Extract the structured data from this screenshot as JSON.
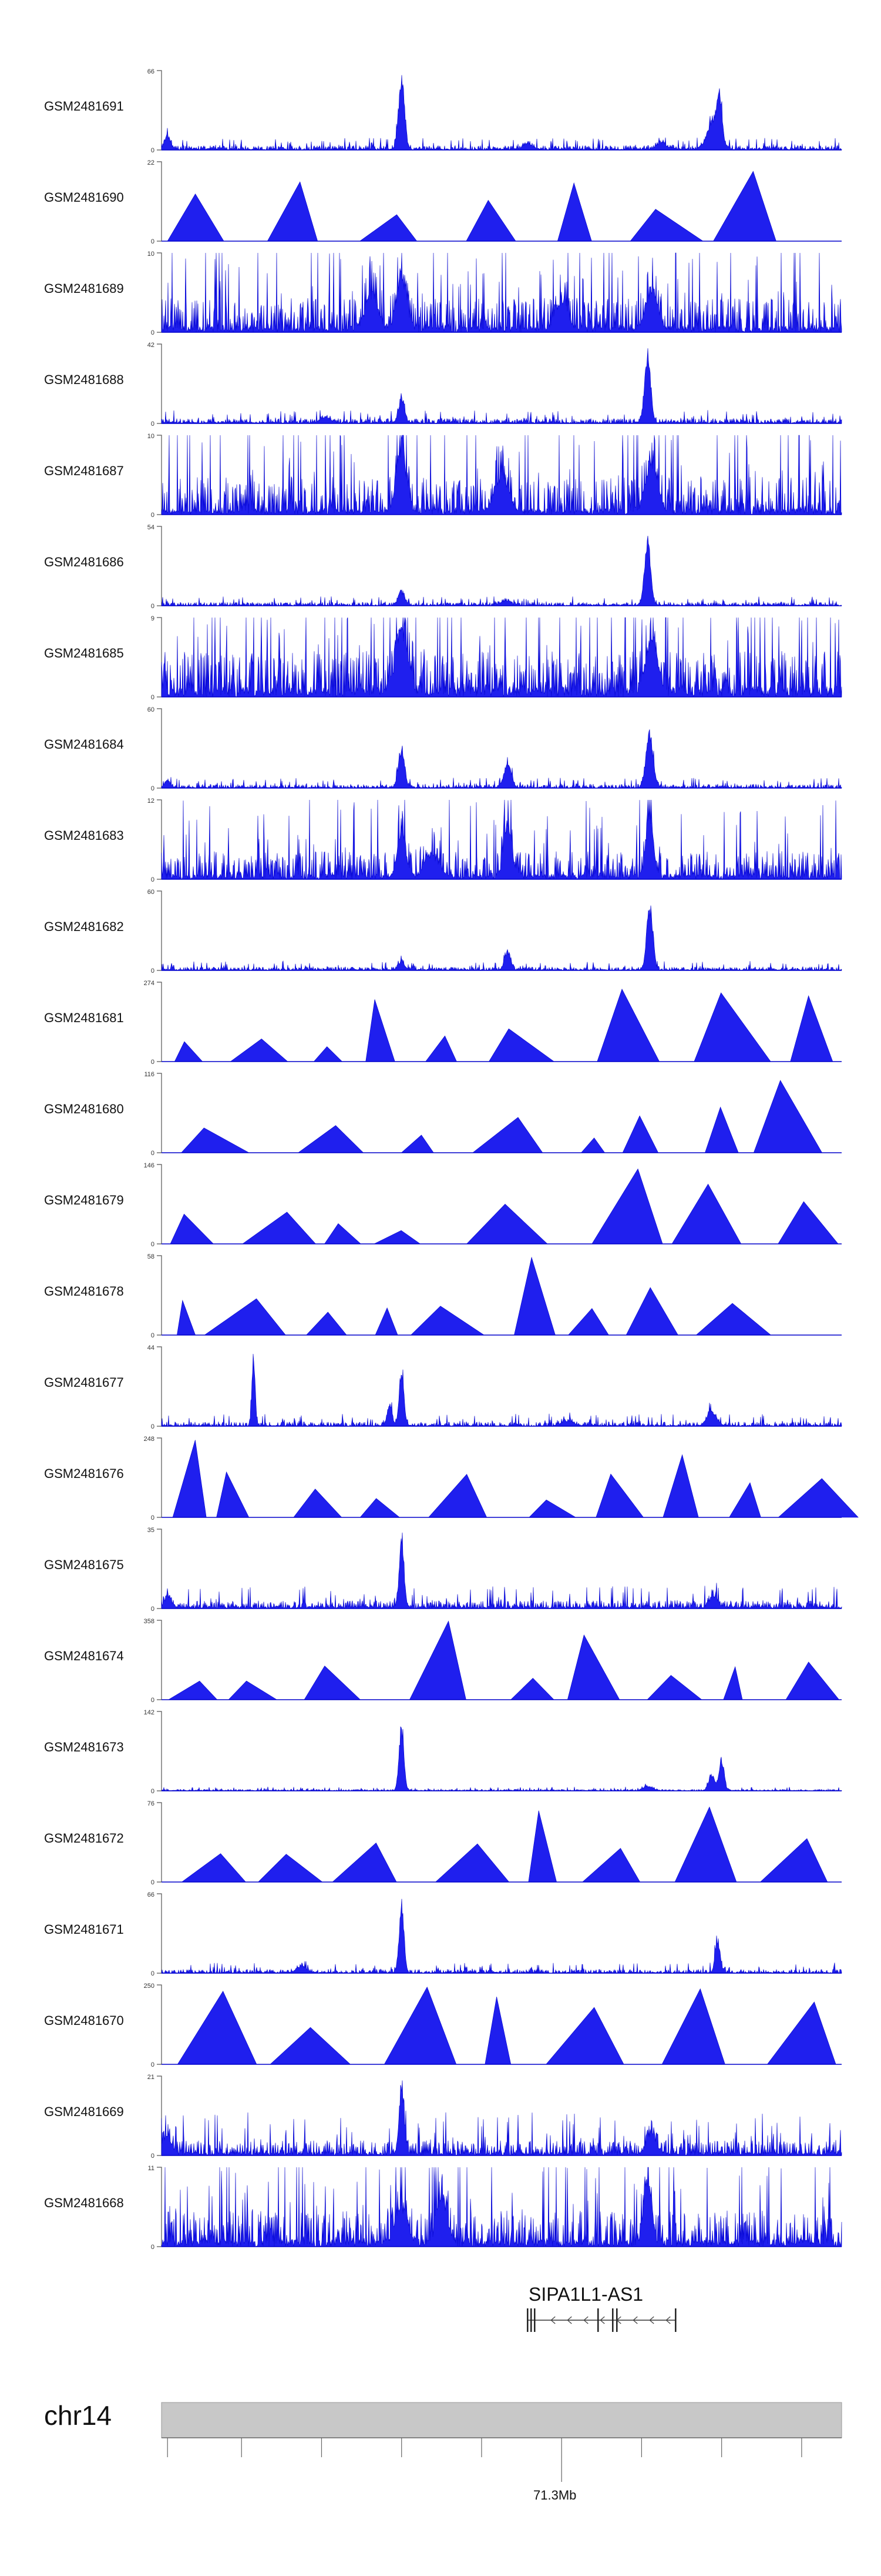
{
  "chart_data": {
    "type": "area",
    "title": "",
    "xlabel": "",
    "ylabel": "",
    "xlim": [
      71130000,
      71470000
    ],
    "tracks": [
      {
        "sample": "GSM2481691",
        "ymax": 66,
        "ymax_label": "66",
        "style": "signal",
        "baseline": 1.2,
        "noise": 2.5,
        "peaks": [
          [
            71250000,
            62,
            1500
          ],
          [
            71406000,
            28,
            3000
          ],
          [
            71409000,
            34,
            1200
          ],
          [
            71133000,
            12,
            1500
          ],
          [
            71313000,
            5,
            2500
          ],
          [
            71380000,
            6,
            2500
          ]
        ]
      },
      {
        "sample": "GSM2481690",
        "ymax": 22,
        "ymax_label": "22",
        "style": "sparse"
      },
      {
        "sample": "GSM2481689",
        "ymax": 10,
        "ymax_label": "10",
        "style": "signal",
        "baseline": 0.8,
        "noise": 3.5,
        "peaks": [
          [
            71250000,
            8,
            2500
          ],
          [
            71235000,
            5,
            3000
          ],
          [
            71375000,
            6,
            3000
          ],
          [
            71330000,
            4,
            3000
          ]
        ]
      },
      {
        "sample": "GSM2481688",
        "ymax": 42,
        "ymax_label": "42",
        "style": "signal",
        "baseline": 0.8,
        "noise": 1.8,
        "peaks": [
          [
            71373000,
            40,
            1500
          ],
          [
            71250000,
            14,
            1500
          ],
          [
            71212000,
            3,
            2500
          ]
        ]
      },
      {
        "sample": "GSM2481687",
        "ymax": 10,
        "ymax_label": "10",
        "style": "signal",
        "baseline": 0.8,
        "noise": 4.0,
        "peaks": [
          [
            71250000,
            9,
            2500
          ],
          [
            71375000,
            7,
            3000
          ],
          [
            71300000,
            5,
            3500
          ]
        ]
      },
      {
        "sample": "GSM2481686",
        "ymax": 54,
        "ymax_label": "54",
        "style": "signal",
        "baseline": 0.8,
        "noise": 1.6,
        "peaks": [
          [
            71373000,
            50,
            1500
          ],
          [
            71250000,
            10,
            1500
          ],
          [
            71302000,
            3,
            2500
          ]
        ]
      },
      {
        "sample": "GSM2481685",
        "ymax": 9,
        "ymax_label": "9",
        "style": "signal",
        "baseline": 1.2,
        "noise": 4.0,
        "peaks": [
          [
            71250000,
            8,
            3000
          ],
          [
            71375000,
            7,
            3000
          ]
        ]
      },
      {
        "sample": "GSM2481684",
        "ymax": 60,
        "ymax_label": "60",
        "style": "signal",
        "baseline": 0.8,
        "noise": 2.0,
        "peaks": [
          [
            71250000,
            32,
            1500
          ],
          [
            71303000,
            20,
            1800
          ],
          [
            71374000,
            44,
            1800
          ],
          [
            71133000,
            6,
            1500
          ]
        ]
      },
      {
        "sample": "GSM2481683",
        "ymax": 12,
        "ymax_label": "12",
        "style": "signal",
        "baseline": 0.8,
        "noise": 3.5,
        "peaks": [
          [
            71374000,
            11,
            1800
          ],
          [
            71303000,
            9,
            2000
          ],
          [
            71250000,
            8,
            2000
          ],
          [
            71265000,
            4,
            3500
          ]
        ]
      },
      {
        "sample": "GSM2481682",
        "ymax": 60,
        "ymax_label": "60",
        "style": "signal",
        "baseline": 0.8,
        "noise": 1.8,
        "peaks": [
          [
            71374000,
            52,
            1500
          ],
          [
            71303000,
            15,
            1500
          ],
          [
            71250000,
            7,
            1500
          ]
        ]
      },
      {
        "sample": "GSM2481681",
        "ymax": 274,
        "ymax_label": "274",
        "style": "sparse"
      },
      {
        "sample": "GSM2481680",
        "ymax": 116,
        "ymax_label": "116",
        "style": "sparse"
      },
      {
        "sample": "GSM2481679",
        "ymax": 146,
        "ymax_label": "146",
        "style": "sparse"
      },
      {
        "sample": "GSM2481678",
        "ymax": 58,
        "ymax_label": "58",
        "style": "sparse"
      },
      {
        "sample": "GSM2481677",
        "ymax": 44,
        "ymax_label": "44",
        "style": "signal",
        "baseline": 0.6,
        "noise": 1.8,
        "peaks": [
          [
            71176000,
            42,
            800
          ],
          [
            71250000,
            32,
            1200
          ],
          [
            71244000,
            12,
            1200
          ],
          [
            71405000,
            8,
            2500
          ],
          [
            71333000,
            3,
            3000
          ]
        ]
      },
      {
        "sample": "GSM2481676",
        "ymax": 248,
        "ymax_label": "248",
        "style": "sparse"
      },
      {
        "sample": "GSM2481675",
        "ymax": 35,
        "ymax_label": "35",
        "style": "signal",
        "baseline": 1.0,
        "noise": 2.5,
        "peaks": [
          [
            71250000,
            32,
            1200
          ],
          [
            71406000,
            6,
            2000
          ],
          [
            71133000,
            6,
            1500
          ]
        ]
      },
      {
        "sample": "GSM2481674",
        "ymax": 358,
        "ymax_label": "358",
        "style": "sparse"
      },
      {
        "sample": "GSM2481673",
        "ymax": 142,
        "ymax_label": "142",
        "style": "signal",
        "baseline": 1.0,
        "noise": 1.8,
        "peaks": [
          [
            71250000,
            125,
            1200
          ],
          [
            71410000,
            62,
            1200
          ],
          [
            71405000,
            30,
            1500
          ],
          [
            71373000,
            8,
            2500
          ]
        ]
      },
      {
        "sample": "GSM2481672",
        "ymax": 76,
        "ymax_label": "76",
        "style": "sparse"
      },
      {
        "sample": "GSM2481671",
        "ymax": 66,
        "ymax_label": "66",
        "style": "signal",
        "baseline": 1.0,
        "noise": 2.2,
        "peaks": [
          [
            71250000,
            60,
            1200
          ],
          [
            71408000,
            30,
            1200
          ],
          [
            71200000,
            6,
            2500
          ]
        ]
      },
      {
        "sample": "GSM2481670",
        "ymax": 250,
        "ymax_label": "250",
        "style": "sparse"
      },
      {
        "sample": "GSM2481669",
        "ymax": 21,
        "ymax_label": "21",
        "style": "signal",
        "baseline": 1.0,
        "noise": 3.0,
        "peaks": [
          [
            71250000,
            20,
            1200
          ],
          [
            71375000,
            6,
            2500
          ],
          [
            71133000,
            5,
            2000
          ]
        ]
      },
      {
        "sample": "GSM2481668",
        "ymax": 11,
        "ymax_label": "11",
        "style": "signal",
        "baseline": 1.0,
        "noise": 4.0,
        "peaks": [
          [
            71373000,
            10,
            2000
          ],
          [
            71270000,
            8,
            2500
          ],
          [
            71250000,
            6,
            3000
          ]
        ]
      }
    ],
    "gene": {
      "name": "SIPA1L1-AS1",
      "start": 71313000,
      "end": 71387000,
      "strand": "-"
    },
    "chromosome": "chr14",
    "position_label": "71.3Mb",
    "position_value": 71330000
  }
}
